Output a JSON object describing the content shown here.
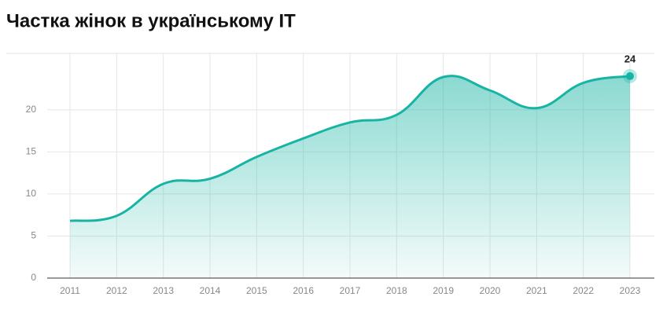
{
  "chart_data": {
    "type": "area",
    "title": "Частка жінок в українському IT",
    "x": [
      2011,
      2012,
      2013,
      2014,
      2015,
      2016,
      2017,
      2018,
      2019,
      2020,
      2021,
      2022,
      2023
    ],
    "series": [
      {
        "color": "#17b4a4",
        "values": [
          6.8,
          7.4,
          11.2,
          11.8,
          14.4,
          16.6,
          18.5,
          19.4,
          23.9,
          22.3,
          20.2,
          23.2,
          24
        ]
      }
    ],
    "xlim": [
      2011,
      2023
    ],
    "xticks": [
      2011,
      2012,
      2013,
      2014,
      2015,
      2016,
      2017,
      2018,
      2019,
      2020,
      2021,
      2022,
      2023
    ],
    "ylim": [
      0,
      26.7
    ],
    "yticks": [
      0,
      5,
      10,
      15,
      20
    ],
    "grid": true
  }
}
